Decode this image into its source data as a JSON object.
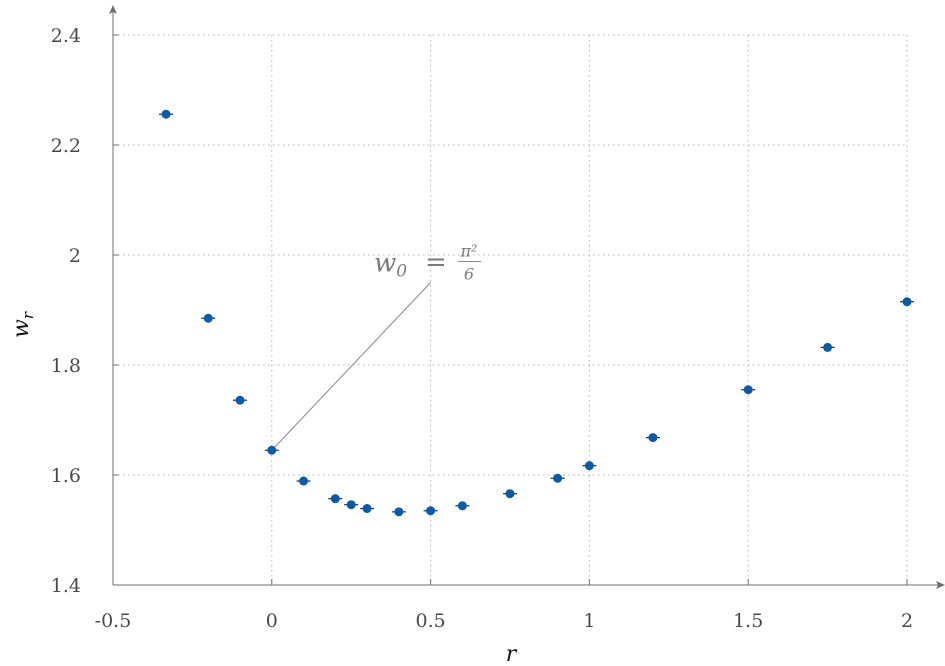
{
  "chart_data": {
    "type": "scatter",
    "xlabel": "r",
    "ylabel": "w",
    "ylabel_sub": "r",
    "xlim": [
      -0.5,
      2.0
    ],
    "ylim": [
      1.4,
      2.4
    ],
    "x_ticks": [
      -0.5,
      0,
      0.5,
      1,
      1.5,
      2
    ],
    "x_tick_labels": [
      "-0.5",
      "0",
      "0.5",
      "1",
      "1.5",
      "2"
    ],
    "y_ticks": [
      1.4,
      1.6,
      1.8,
      2.0,
      2.2,
      2.4
    ],
    "y_tick_labels": [
      "1.4",
      "1.6",
      "1.8",
      "2",
      "2.2",
      "2.4"
    ],
    "grid": true,
    "marker_color": "#0d5aa7",
    "points": [
      {
        "x": -0.333,
        "y": 2.256
      },
      {
        "x": -0.2,
        "y": 1.885
      },
      {
        "x": -0.1,
        "y": 1.736
      },
      {
        "x": 0.0,
        "y": 1.645
      },
      {
        "x": 0.1,
        "y": 1.589
      },
      {
        "x": 0.2,
        "y": 1.557
      },
      {
        "x": 0.25,
        "y": 1.546
      },
      {
        "x": 0.3,
        "y": 1.539
      },
      {
        "x": 0.4,
        "y": 1.533
      },
      {
        "x": 0.5,
        "y": 1.535
      },
      {
        "x": 0.6,
        "y": 1.544
      },
      {
        "x": 0.75,
        "y": 1.566
      },
      {
        "x": 0.9,
        "y": 1.594
      },
      {
        "x": 1.0,
        "y": 1.617
      },
      {
        "x": 1.2,
        "y": 1.668
      },
      {
        "x": 1.5,
        "y": 1.755
      },
      {
        "x": 1.75,
        "y": 1.832
      },
      {
        "x": 2.0,
        "y": 1.915
      }
    ],
    "annotation": {
      "text_lhs": "w",
      "text_sub": "0",
      "text_eq": "=",
      "frac_num": "π²",
      "frac_den": "6",
      "points_to": {
        "x": 0.0,
        "y": 1.645
      },
      "line_end": {
        "x": 0.5,
        "y": 1.95
      }
    }
  }
}
